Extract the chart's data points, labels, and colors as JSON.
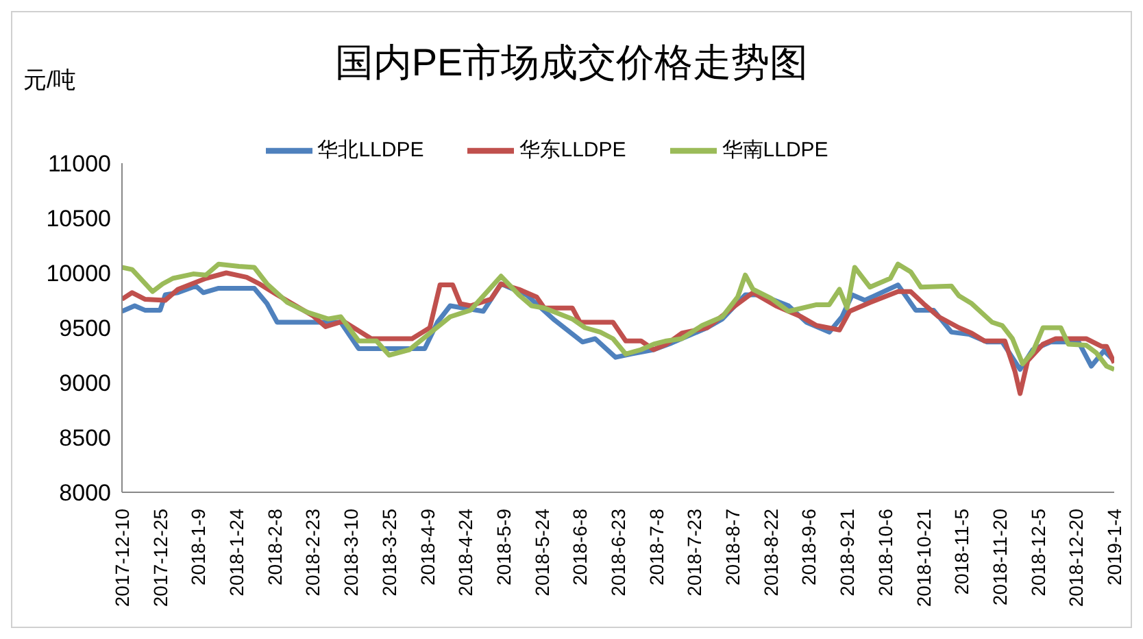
{
  "chart_data": {
    "type": "line",
    "title": "国内PE市场成交价格走势图",
    "ylabel": "元/吨",
    "legend": "top",
    "grid": false,
    "marker": "none",
    "line_style": "solid",
    "ylim": [
      8000,
      11000
    ],
    "yticks": [
      8000,
      8500,
      9000,
      9500,
      10000,
      10500,
      11000
    ],
    "xlim": [
      "2017-12-10",
      "2019-01-04"
    ],
    "xticks": [
      {
        "value": "2017-12-10",
        "label": "2017-12-10"
      },
      {
        "value": "2017-12-25",
        "label": "2017-12-25"
      },
      {
        "value": "2018-01-09",
        "label": "2018-1-9"
      },
      {
        "value": "2018-01-24",
        "label": "2018-1-24"
      },
      {
        "value": "2018-02-08",
        "label": "2018-2-8"
      },
      {
        "value": "2018-02-23",
        "label": "2018-2-23"
      },
      {
        "value": "2018-03-10",
        "label": "2018-3-10"
      },
      {
        "value": "2018-03-25",
        "label": "2018-3-25"
      },
      {
        "value": "2018-04-09",
        "label": "2018-4-9"
      },
      {
        "value": "2018-04-24",
        "label": "2018-4-24"
      },
      {
        "value": "2018-05-09",
        "label": "2018-5-9"
      },
      {
        "value": "2018-05-24",
        "label": "2018-5-24"
      },
      {
        "value": "2018-06-08",
        "label": "2018-6-8"
      },
      {
        "value": "2018-06-23",
        "label": "2018-6-23"
      },
      {
        "value": "2018-07-08",
        "label": "2018-7-8"
      },
      {
        "value": "2018-07-23",
        "label": "2018-7-23"
      },
      {
        "value": "2018-08-07",
        "label": "2018-8-7"
      },
      {
        "value": "2018-08-22",
        "label": "2018-8-22"
      },
      {
        "value": "2018-09-06",
        "label": "2018-9-6"
      },
      {
        "value": "2018-09-21",
        "label": "2018-9-21"
      },
      {
        "value": "2018-10-06",
        "label": "2018-10-6"
      },
      {
        "value": "2018-10-21",
        "label": "2018-10-21"
      },
      {
        "value": "2018-11-05",
        "label": "2018-11-5"
      },
      {
        "value": "2018-11-20",
        "label": "2018-11-20"
      },
      {
        "value": "2018-12-05",
        "label": "2018-12-5"
      },
      {
        "value": "2018-12-20",
        "label": "2018-12-20"
      },
      {
        "value": "2019-01-04",
        "label": "2019-1-4"
      }
    ],
    "series": [
      {
        "name": "华北LLDPE",
        "color": "#4f81bd",
        "x": [
          "2017-12-10",
          "2017-12-15",
          "2017-12-19",
          "2017-12-25",
          "2017-12-27",
          "2018-01-01",
          "2018-01-08",
          "2018-01-11",
          "2018-01-17",
          "2018-01-31",
          "2018-02-05",
          "2018-02-09",
          "2018-03-06",
          "2018-03-13",
          "2018-04-08",
          "2018-04-13",
          "2018-04-18",
          "2018-05-01",
          "2018-05-08",
          "2018-05-18",
          "2018-05-29",
          "2018-06-09",
          "2018-06-14",
          "2018-06-22",
          "2018-06-28",
          "2018-07-07",
          "2018-07-14",
          "2018-07-28",
          "2018-08-03",
          "2018-08-12",
          "2018-08-18",
          "2018-08-29",
          "2018-09-05",
          "2018-09-14",
          "2018-09-19",
          "2018-09-23",
          "2018-09-28",
          "2018-10-11",
          "2018-10-18",
          "2018-10-25",
          "2018-11-01",
          "2018-11-08",
          "2018-11-15",
          "2018-11-21",
          "2018-11-28",
          "2018-12-03",
          "2018-12-10",
          "2018-12-21",
          "2018-12-26",
          "2018-12-31",
          "2019-01-04"
        ],
        "values": [
          9650,
          9700,
          9660,
          9660,
          9800,
          9820,
          9880,
          9820,
          9860,
          9860,
          9720,
          9550,
          9550,
          9310,
          9310,
          9550,
          9700,
          9650,
          9900,
          9800,
          9570,
          9370,
          9400,
          9230,
          9260,
          9300,
          9360,
          9500,
          9580,
          9800,
          9800,
          9700,
          9550,
          9460,
          9600,
          9800,
          9750,
          9890,
          9660,
          9660,
          9460,
          9440,
          9370,
          9370,
          9120,
          9300,
          9370,
          9370,
          9150,
          9290,
          9200
        ]
      },
      {
        "name": "华东LLDPE",
        "color": "#c0504d",
        "x": [
          "2017-12-10",
          "2017-12-14",
          "2017-12-19",
          "2017-12-27",
          "2018-01-01",
          "2018-01-12",
          "2018-01-20",
          "2018-01-28",
          "2018-02-02",
          "2018-02-09",
          "2018-02-23",
          "2018-02-28",
          "2018-03-07",
          "2018-03-18",
          "2018-04-03",
          "2018-04-10",
          "2018-04-14",
          "2018-04-19",
          "2018-04-22",
          "2018-04-26",
          "2018-05-04",
          "2018-05-08",
          "2018-05-15",
          "2018-05-22",
          "2018-05-25",
          "2018-06-05",
          "2018-06-08",
          "2018-06-21",
          "2018-06-26",
          "2018-07-02",
          "2018-07-07",
          "2018-07-12",
          "2018-07-18",
          "2018-07-28",
          "2018-08-08",
          "2018-08-15",
          "2018-08-24",
          "2018-09-03",
          "2018-09-09",
          "2018-09-18",
          "2018-09-22",
          "2018-09-30",
          "2018-10-11",
          "2018-10-16",
          "2018-10-21",
          "2018-10-27",
          "2018-11-04",
          "2018-11-09",
          "2018-11-14",
          "2018-11-22",
          "2018-11-26",
          "2018-11-28",
          "2018-12-01",
          "2018-12-07",
          "2018-12-12",
          "2018-12-24",
          "2018-12-30",
          "2019-01-01",
          "2019-01-04"
        ],
        "values": [
          9760,
          9820,
          9760,
          9750,
          9850,
          9950,
          10000,
          9960,
          9900,
          9800,
          9610,
          9510,
          9560,
          9400,
          9400,
          9500,
          9890,
          9890,
          9720,
          9700,
          9760,
          9900,
          9850,
          9780,
          9680,
          9680,
          9550,
          9550,
          9380,
          9380,
          9300,
          9350,
          9450,
          9500,
          9700,
          9820,
          9700,
          9600,
          9520,
          9480,
          9650,
          9730,
          9830,
          9830,
          9720,
          9600,
          9500,
          9450,
          9380,
          9380,
          9100,
          8900,
          9200,
          9350,
          9400,
          9400,
          9330,
          9330,
          9180
        ]
      },
      {
        "name": "华南LLDPE",
        "color": "#9bbb59",
        "x": [
          "2017-12-10",
          "2017-12-14",
          "2017-12-16",
          "2017-12-22",
          "2017-12-26",
          "2017-12-30",
          "2018-01-07",
          "2018-01-12",
          "2018-01-17",
          "2018-01-25",
          "2018-01-31",
          "2018-02-05",
          "2018-02-13",
          "2018-02-21",
          "2018-03-01",
          "2018-03-06",
          "2018-03-13",
          "2018-03-20",
          "2018-03-25",
          "2018-04-02",
          "2018-04-10",
          "2018-04-18",
          "2018-04-26",
          "2018-05-08",
          "2018-05-15",
          "2018-05-20",
          "2018-05-25",
          "2018-06-05",
          "2018-06-10",
          "2018-06-16",
          "2018-06-21",
          "2018-06-26",
          "2018-07-02",
          "2018-07-07",
          "2018-07-12",
          "2018-07-18",
          "2018-07-26",
          "2018-08-03",
          "2018-08-09",
          "2018-08-12",
          "2018-08-15",
          "2018-08-22",
          "2018-08-29",
          "2018-09-09",
          "2018-09-14",
          "2018-09-18",
          "2018-09-21",
          "2018-09-24",
          "2018-09-27",
          "2018-09-30",
          "2018-10-08",
          "2018-10-11",
          "2018-10-16",
          "2018-10-20",
          "2018-11-01",
          "2018-11-04",
          "2018-11-09",
          "2018-11-17",
          "2018-11-21",
          "2018-11-25",
          "2018-11-29",
          "2018-12-03",
          "2018-12-07",
          "2018-12-14",
          "2018-12-17",
          "2018-12-24",
          "2018-12-28",
          "2019-01-01",
          "2019-01-04"
        ],
        "values": [
          10050,
          10030,
          9980,
          9830,
          9900,
          9950,
          9990,
          9980,
          10080,
          10060,
          10050,
          9900,
          9730,
          9640,
          9580,
          9600,
          9380,
          9380,
          9250,
          9300,
          9450,
          9600,
          9660,
          9970,
          9800,
          9700,
          9680,
          9580,
          9500,
          9460,
          9400,
          9260,
          9300,
          9350,
          9380,
          9400,
          9520,
          9600,
          9780,
          9980,
          9850,
          9770,
          9650,
          9710,
          9710,
          9850,
          9680,
          10050,
          9960,
          9870,
          9950,
          10080,
          10010,
          9870,
          9880,
          9790,
          9720,
          9550,
          9520,
          9400,
          9170,
          9280,
          9500,
          9500,
          9350,
          9340,
          9270,
          9150,
          9120
        ]
      }
    ]
  }
}
